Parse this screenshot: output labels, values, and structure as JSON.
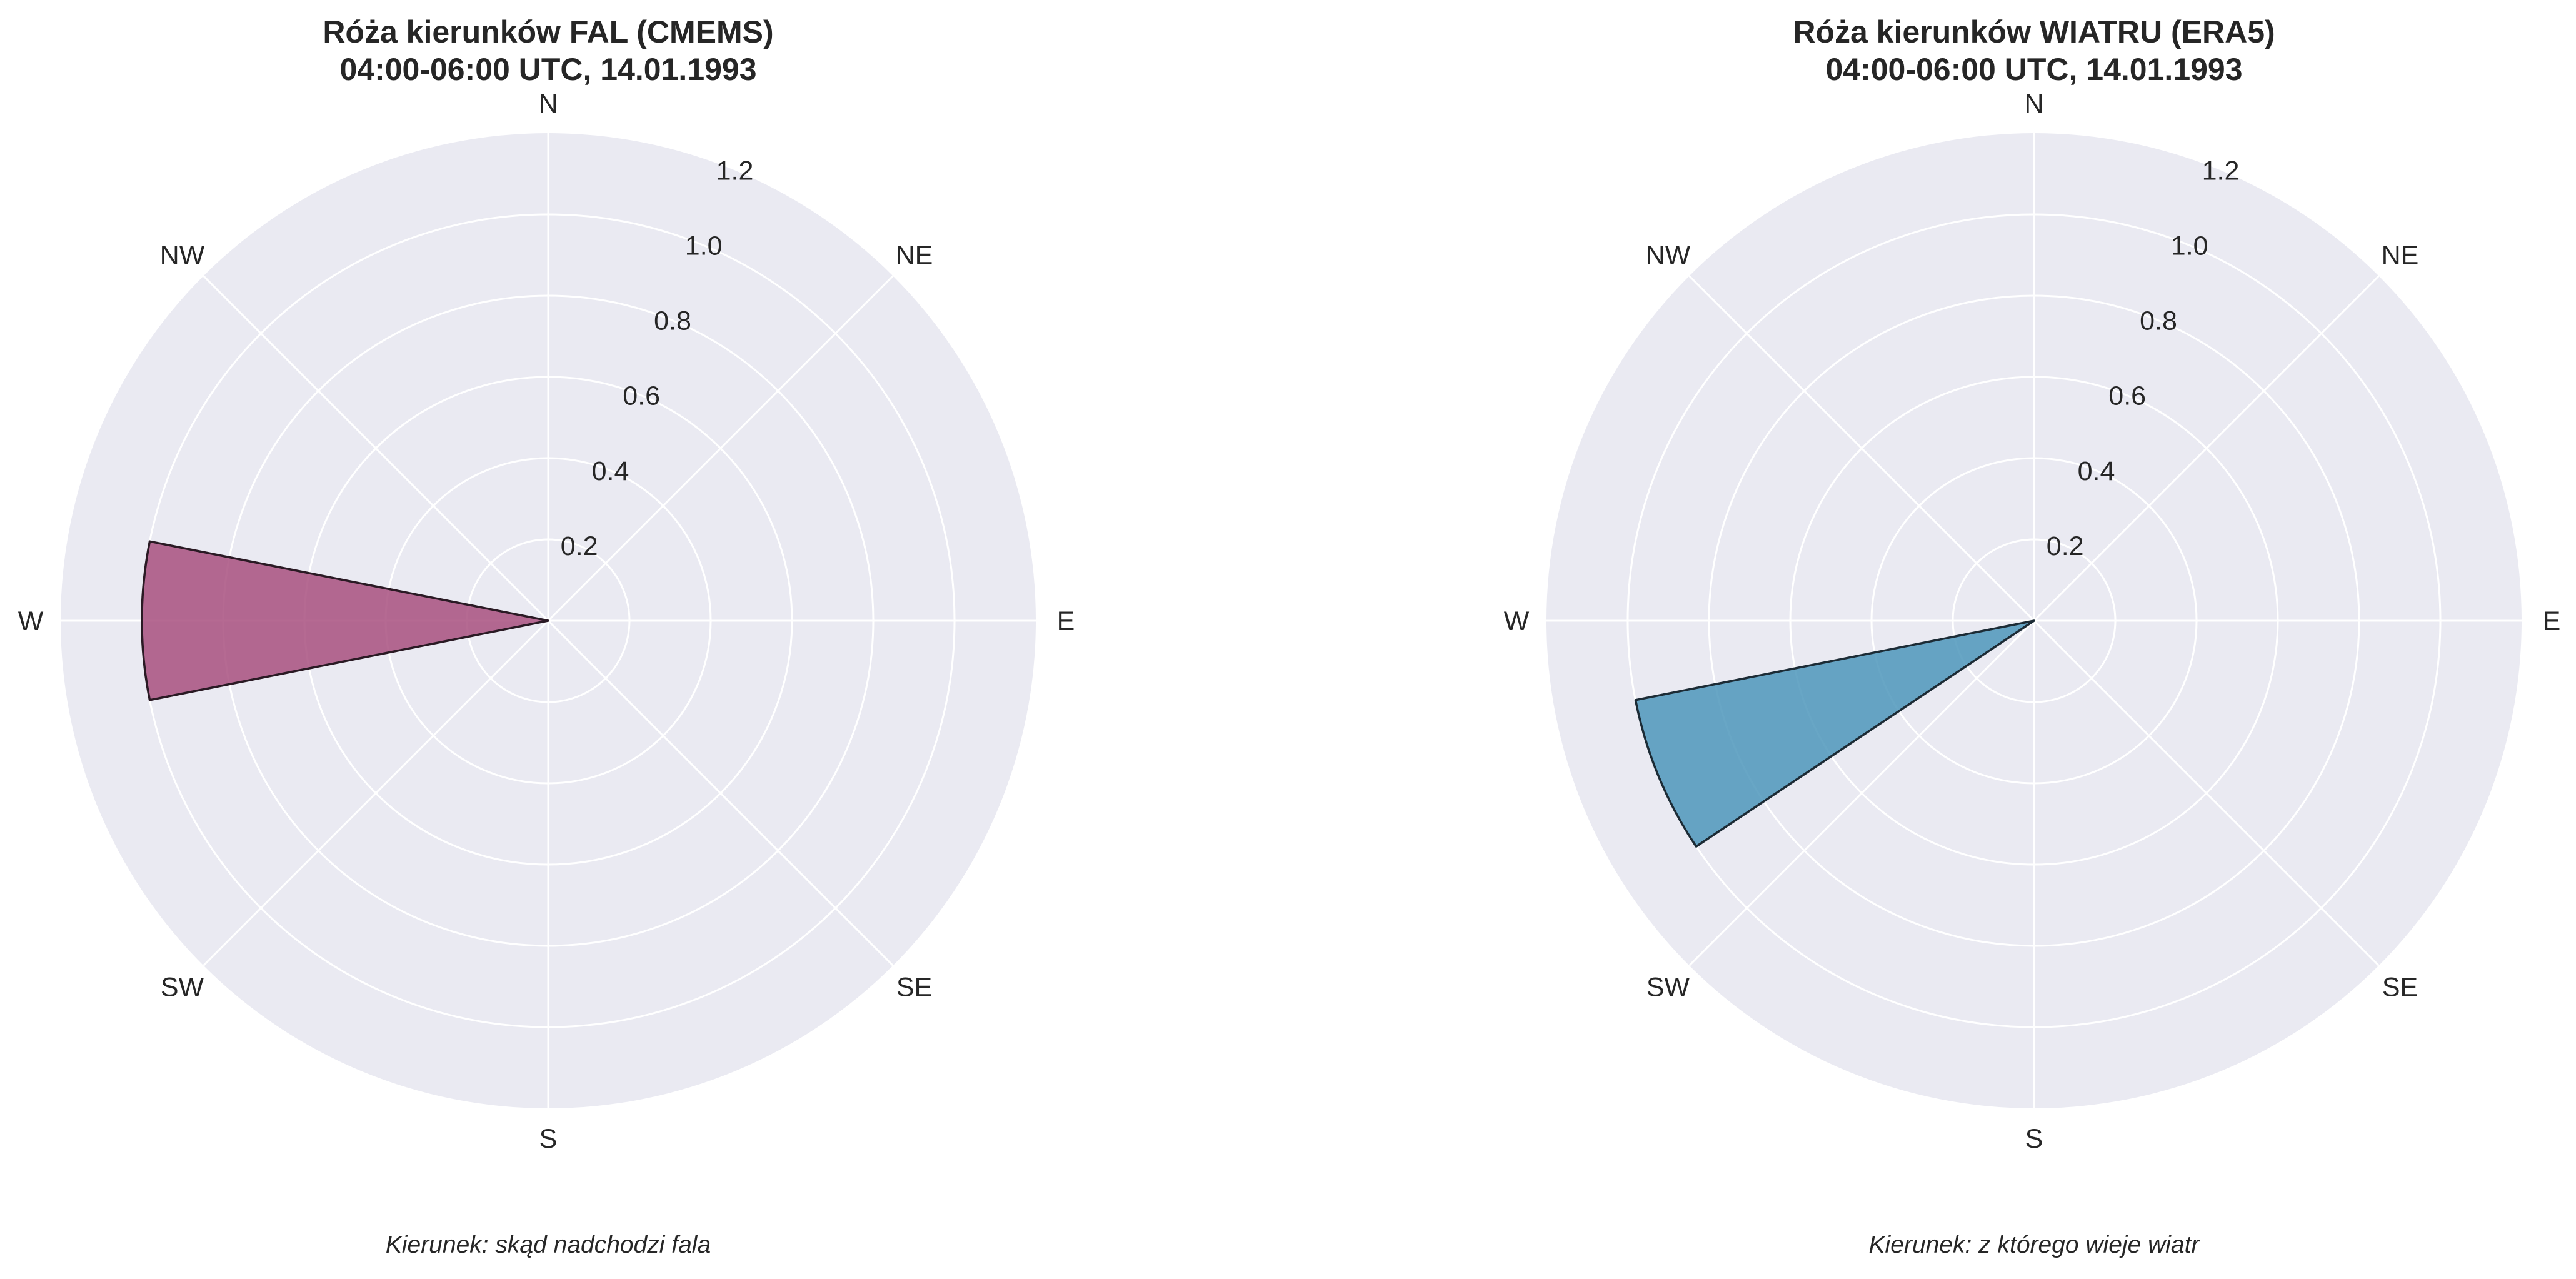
{
  "chart_data": [
    {
      "type": "polar-bar",
      "title": "Róża kierunków FAL (CMEMS)",
      "subtitle": "04:00-06:00 UTC, 14.01.1993",
      "caption": "Kierunek: skąd nadchodzi fala",
      "directions": [
        "N",
        "NE",
        "E",
        "SE",
        "S",
        "SW",
        "W",
        "NW"
      ],
      "radial_ticks": [
        "0.2",
        "0.4",
        "0.6",
        "0.8",
        "1.0",
        "1.2"
      ],
      "rlim": [
        0,
        1.2
      ],
      "bar": {
        "direction_deg": 270,
        "width_deg": 22.5,
        "value": 1.0
      },
      "bar_color": "#a8507f",
      "bar_edge_color": "#2a1a24"
    },
    {
      "type": "polar-bar",
      "title": "Róża kierunków WIATRU (ERA5)",
      "subtitle": "04:00-06:00 UTC, 14.01.1993",
      "caption": "Kierunek: z którego wieje wiatr",
      "directions": [
        "N",
        "NE",
        "E",
        "SE",
        "S",
        "SW",
        "W",
        "NW"
      ],
      "radial_ticks": [
        "0.2",
        "0.4",
        "0.6",
        "0.8",
        "1.0",
        "1.2"
      ],
      "rlim": [
        0,
        1.2
      ],
      "bar": {
        "direction_deg": 247.5,
        "width_deg": 22.5,
        "value": 1.0
      },
      "bar_color": "#4e96bb",
      "bar_edge_color": "#1c2b35"
    }
  ]
}
